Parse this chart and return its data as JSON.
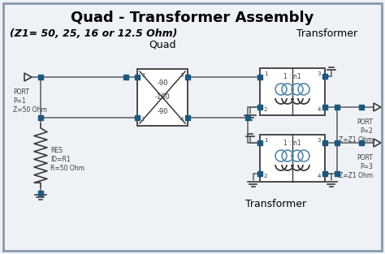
{
  "title": "Quad - Transformer Assembly",
  "subtitle": "(Z1= 50, 25, 16 or 12.5 Ohm)",
  "transformer_label_top": "Transformer",
  "transformer_label_bot": "Transformer",
  "quad_label": "Quad",
  "bg_color": "#eef2f7",
  "line_color": "#3a3a3a",
  "wire_color": "#5a5a5a",
  "node_color": "#1a5880",
  "white": "#ffffff",
  "port1_lines": [
    "PORT",
    "P=1",
    "Z=50 Ohm"
  ],
  "port2_lines": [
    "PORT",
    "P=2",
    "Z=Z1 Ohm"
  ],
  "port3_lines": [
    "PORT",
    "P=3",
    "Z=Z1 Ohm"
  ],
  "res_lines": [
    "RES",
    "ID=R1",
    "R=50 Ohm"
  ],
  "quad_phases": [
    "-90",
    "-180",
    "-90"
  ],
  "trans_ratio": "1 : n1",
  "border_color": "#8899aa",
  "title_fontsize": 13,
  "label_fontsize": 9,
  "small_fontsize": 6,
  "port_fontsize": 5.5
}
